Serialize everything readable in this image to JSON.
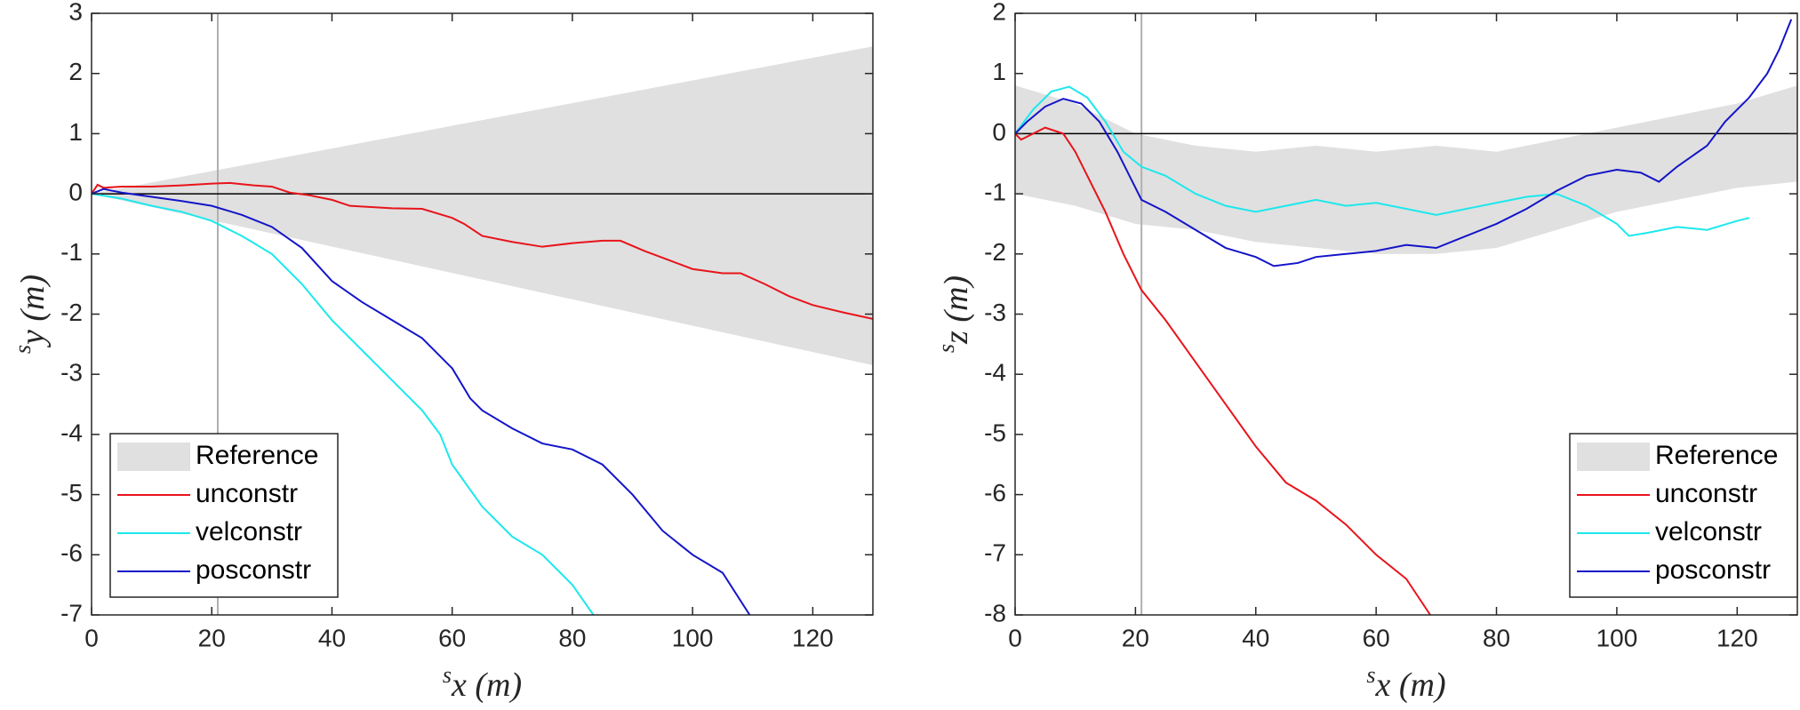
{
  "chart_data": [
    {
      "type": "line",
      "xlabel_sup": "s",
      "xlabel": "x (m)",
      "ylabel_sup": "s",
      "ylabel": "y (m)",
      "xlim": [
        0,
        130
      ],
      "ylim": [
        -7,
        3
      ],
      "xticks": [
        0,
        20,
        40,
        60,
        80,
        100,
        120
      ],
      "yticks": [
        -7,
        -6,
        -5,
        -4,
        -3,
        -2,
        -1,
        0,
        1,
        2,
        3
      ],
      "vline_x": 21,
      "hline_y": 0,
      "legend": "lower left",
      "series": [
        {
          "name": "Reference",
          "color": "#e0e0e0",
          "x": [
            0,
            130
          ],
          "upper": [
            0,
            2.45
          ],
          "lower": [
            0,
            -2.85
          ]
        },
        {
          "name": "unconstr",
          "color": "#e8141b",
          "x": [
            0,
            1,
            2,
            5,
            10,
            15,
            20,
            23,
            27,
            30,
            33,
            36,
            40,
            43,
            50,
            55,
            60,
            62,
            65,
            70,
            75,
            80,
            85,
            88,
            92,
            96,
            100,
            105,
            108,
            112,
            116,
            120,
            125,
            130
          ],
          "values": [
            0,
            0.15,
            0.1,
            0.12,
            0.12,
            0.14,
            0.17,
            0.18,
            0.14,
            0.12,
            0.02,
            -0.02,
            -0.1,
            -0.2,
            -0.24,
            -0.25,
            -0.4,
            -0.5,
            -0.7,
            -0.8,
            -0.88,
            -0.82,
            -0.78,
            -0.78,
            -0.95,
            -1.1,
            -1.25,
            -1.32,
            -1.32,
            -1.5,
            -1.7,
            -1.85,
            -1.97,
            -2.08
          ]
        },
        {
          "name": "velconstr",
          "color": "#1de8ec",
          "x": [
            0,
            5,
            10,
            15,
            20,
            25,
            30,
            35,
            40,
            45,
            50,
            55,
            58,
            60,
            65,
            70,
            75,
            80,
            83.5
          ],
          "values": [
            0,
            -0.08,
            -0.2,
            -0.3,
            -0.45,
            -0.7,
            -1.0,
            -1.5,
            -2.1,
            -2.6,
            -3.1,
            -3.6,
            -4.0,
            -4.5,
            -5.2,
            -5.7,
            -6.0,
            -6.5,
            -7
          ]
        },
        {
          "name": "posconstr",
          "color": "#1414c8",
          "x": [
            0,
            2,
            5,
            10,
            15,
            20,
            25,
            30,
            35,
            40,
            45,
            50,
            55,
            60,
            63,
            65,
            70,
            75,
            80,
            85,
            90,
            95,
            100,
            105,
            109.5
          ],
          "values": [
            0,
            0.08,
            0.02,
            -0.05,
            -0.12,
            -0.2,
            -0.35,
            -0.55,
            -0.9,
            -1.45,
            -1.8,
            -2.1,
            -2.4,
            -2.9,
            -3.4,
            -3.6,
            -3.9,
            -4.15,
            -4.25,
            -4.5,
            -5.0,
            -5.6,
            -6.0,
            -6.3,
            -7
          ]
        }
      ]
    },
    {
      "type": "line",
      "xlabel_sup": "s",
      "xlabel": "x (m)",
      "ylabel_sup": "s",
      "ylabel": "z (m)",
      "xlim": [
        0,
        130
      ],
      "ylim": [
        -8,
        2
      ],
      "xticks": [
        0,
        20,
        40,
        60,
        80,
        100,
        120
      ],
      "yticks": [
        -8,
        -7,
        -6,
        -5,
        -4,
        -3,
        -2,
        -1,
        0,
        1,
        2
      ],
      "vline_x": 21,
      "hline_y": 0,
      "legend": "lower right",
      "series": [
        {
          "name": "Reference",
          "color": "#e0e0e0",
          "x": [
            0,
            10,
            20,
            30,
            40,
            50,
            60,
            70,
            80,
            90,
            100,
            110,
            120,
            130
          ],
          "upper": [
            0.8,
            0.5,
            0.0,
            -0.2,
            -0.3,
            -0.2,
            -0.3,
            -0.2,
            -0.3,
            -0.1,
            0.1,
            0.3,
            0.5,
            0.8
          ],
          "lower": [
            -1.0,
            -1.2,
            -1.5,
            -1.6,
            -1.8,
            -1.9,
            -2.0,
            -2.0,
            -1.9,
            -1.6,
            -1.3,
            -1.1,
            -0.9,
            -0.8
          ]
        },
        {
          "name": "unconstr",
          "color": "#e8141b",
          "x": [
            0,
            1,
            3,
            5,
            8,
            10,
            12,
            15,
            18,
            21,
            25,
            30,
            35,
            40,
            45,
            50,
            55,
            60,
            65,
            69
          ],
          "values": [
            0,
            -0.1,
            0,
            0.1,
            0,
            -0.3,
            -0.7,
            -1.3,
            -2.0,
            -2.6,
            -3.1,
            -3.8,
            -4.5,
            -5.2,
            -5.8,
            -6.1,
            -6.5,
            -7.0,
            -7.4,
            -8
          ]
        },
        {
          "name": "velconstr",
          "color": "#1de8ec",
          "x": [
            0,
            3,
            6,
            9,
            12,
            15,
            18,
            21,
            25,
            30,
            35,
            40,
            45,
            50,
            55,
            60,
            65,
            70,
            75,
            80,
            85,
            90,
            95,
            100,
            102,
            105,
            110,
            115,
            120,
            122
          ],
          "values": [
            0,
            0.4,
            0.7,
            0.78,
            0.6,
            0.2,
            -0.3,
            -0.55,
            -0.7,
            -1.0,
            -1.2,
            -1.3,
            -1.2,
            -1.1,
            -1.2,
            -1.15,
            -1.25,
            -1.35,
            -1.25,
            -1.15,
            -1.05,
            -1.0,
            -1.2,
            -1.5,
            -1.7,
            -1.65,
            -1.55,
            -1.6,
            -1.45,
            -1.4
          ]
        },
        {
          "name": "posconstr",
          "color": "#1414c8",
          "x": [
            0,
            2,
            5,
            8,
            11,
            14,
            17,
            21,
            25,
            30,
            35,
            40,
            43,
            47,
            50,
            55,
            60,
            65,
            70,
            75,
            80,
            85,
            90,
            95,
            100,
            104,
            107,
            110,
            115,
            118,
            122,
            125,
            127,
            129
          ],
          "values": [
            0,
            0.2,
            0.45,
            0.58,
            0.5,
            0.2,
            -0.3,
            -1.1,
            -1.3,
            -1.6,
            -1.9,
            -2.05,
            -2.2,
            -2.15,
            -2.05,
            -2.0,
            -1.95,
            -1.85,
            -1.9,
            -1.7,
            -1.5,
            -1.25,
            -0.95,
            -0.7,
            -0.6,
            -0.65,
            -0.8,
            -0.55,
            -0.2,
            0.2,
            0.6,
            1.0,
            1.4,
            1.9
          ]
        }
      ]
    }
  ]
}
